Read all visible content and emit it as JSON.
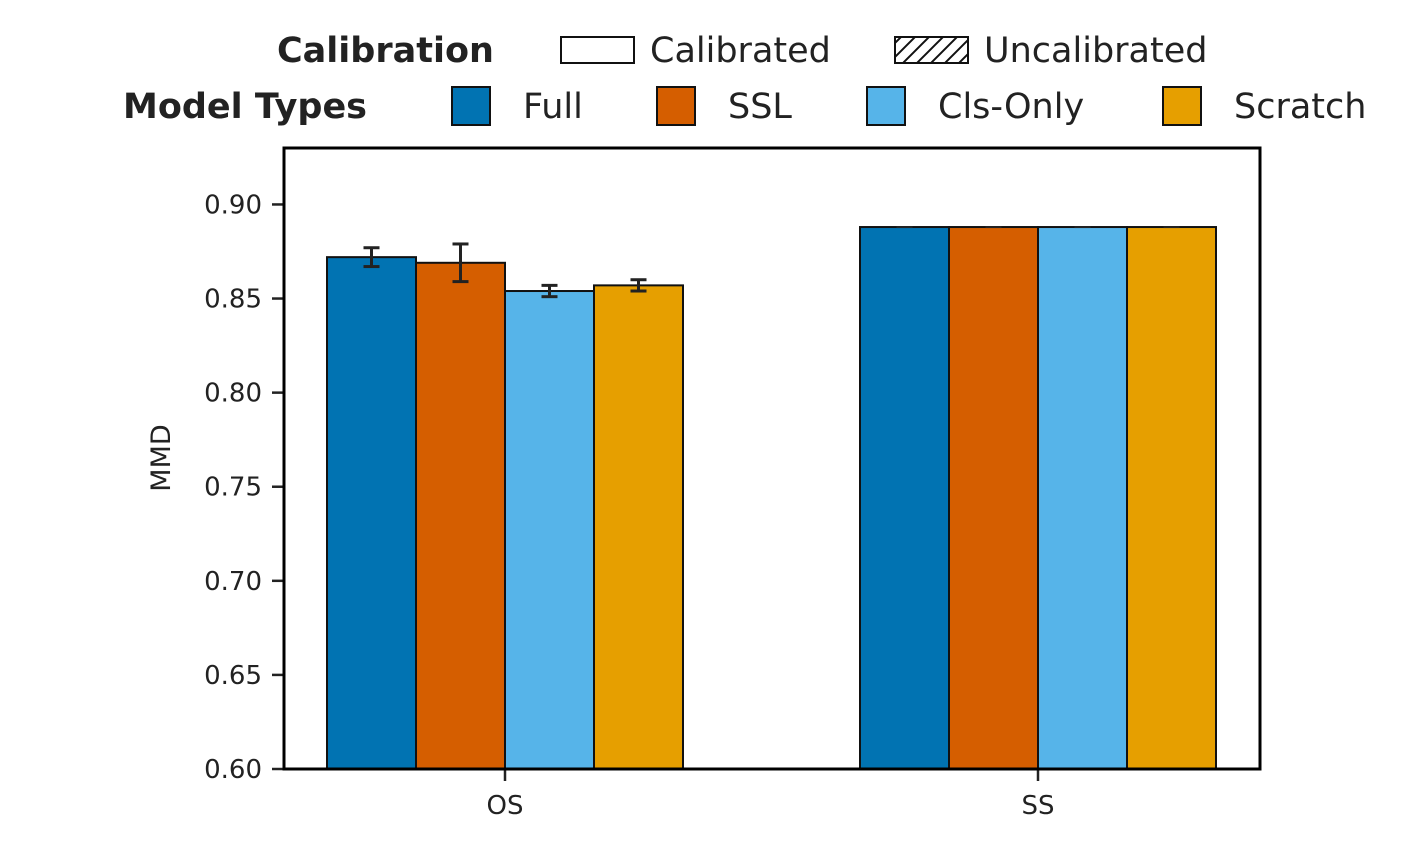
{
  "chart_data": {
    "type": "bar",
    "ylabel": "MMD",
    "xlabel": "",
    "ylim": [
      0.6,
      0.93
    ],
    "yticks": [
      "0.60",
      "0.65",
      "0.70",
      "0.75",
      "0.80",
      "0.85",
      "0.90"
    ],
    "categories": [
      "OS",
      "SS"
    ],
    "series": [
      {
        "name": "Full",
        "color": "#0173b2",
        "values": [
          0.872,
          0.888
        ],
        "err": [
          0.005,
          0.0
        ]
      },
      {
        "name": "SSL",
        "color": "#d55e00",
        "values": [
          0.869,
          0.888
        ],
        "err": [
          0.01,
          0.0
        ]
      },
      {
        "name": "Cls-Only",
        "color": "#56b4e9",
        "values": [
          0.854,
          0.888
        ],
        "err": [
          0.003,
          0.0
        ]
      },
      {
        "name": "Scratch",
        "color": "#e69f00",
        "values": [
          0.857,
          0.888
        ],
        "err": [
          0.003,
          0.0
        ]
      }
    ],
    "legend": {
      "placement": "top",
      "calibration": {
        "title": "Calibration",
        "items": [
          {
            "label": "Calibrated",
            "hatch": false
          },
          {
            "label": "Uncalibrated",
            "hatch": true
          }
        ]
      },
      "model_types": {
        "title": "Model Types"
      }
    }
  }
}
